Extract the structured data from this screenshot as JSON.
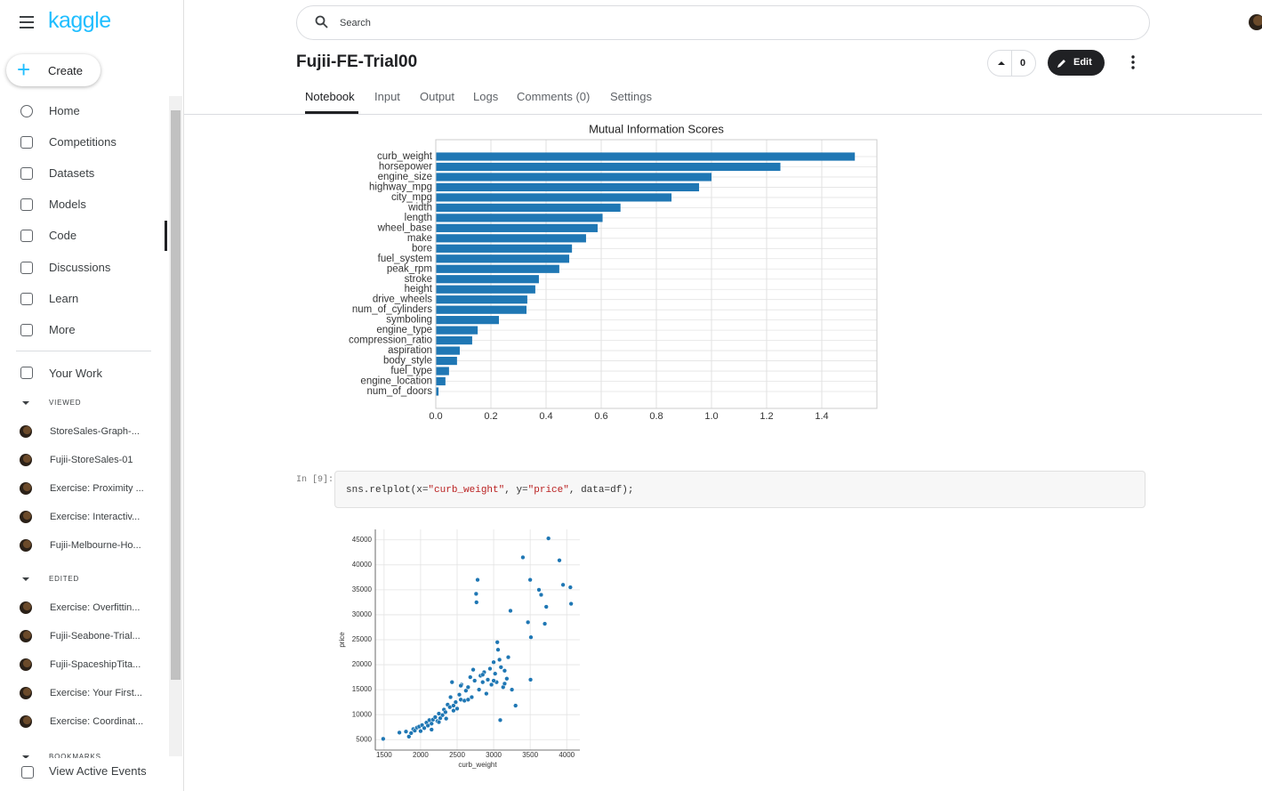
{
  "sidebar": {
    "brand": "kaggle",
    "create": "Create",
    "nav": [
      "Home",
      "Competitions",
      "Datasets",
      "Models",
      "Code",
      "Discussions",
      "Learn",
      "More"
    ],
    "your_work": "Your Work",
    "viewed_label": "VIEWED",
    "viewed": [
      "StoreSales-Graph-...",
      "Fujii-StoreSales-01",
      "Exercise: Proximity ...",
      "Exercise: Interactiv...",
      "Fujii-Melbourne-Ho..."
    ],
    "edited_label": "EDITED",
    "edited": [
      "Exercise: Overfittin...",
      "Fujii-Seabone-Trial...",
      "Fujii-SpaceshipTita...",
      "Exercise: Your First...",
      "Exercise: Coordinat..."
    ],
    "bookmarks_label": "BOOKMARKS",
    "footer": "View Active Events"
  },
  "header": {
    "search": "Search",
    "title": "Fujii-FE-Trial00",
    "votes": 0,
    "edit": "Edit"
  },
  "tabs": [
    "Notebook",
    "Input",
    "Output",
    "Logs",
    "Comments (0)",
    "Settings"
  ],
  "cell": {
    "prompt": "In [9]:",
    "code": [
      "sns.relplot(x=",
      "\"curb_weight\"",
      ", y=",
      "\"price\"",
      ", data=df);"
    ]
  },
  "chart_data": [
    {
      "type": "bar",
      "orientation": "horizontal",
      "title": "Mutual Information Scores",
      "categories": [
        "curb_weight",
        "horsepower",
        "engine_size",
        "highway_mpg",
        "city_mpg",
        "width",
        "length",
        "wheel_base",
        "make",
        "bore",
        "fuel_system",
        "peak_rpm",
        "stroke",
        "height",
        "drive_wheels",
        "num_of_cylinders",
        "symboling",
        "engine_type",
        "compression_ratio",
        "aspiration",
        "body_style",
        "fuel_type",
        "engine_location",
        "num_of_doors"
      ],
      "values": [
        1.52,
        1.25,
        1.0,
        0.955,
        0.855,
        0.67,
        0.605,
        0.587,
        0.545,
        0.494,
        0.484,
        0.448,
        0.374,
        0.361,
        0.332,
        0.329,
        0.229,
        0.152,
        0.132,
        0.087,
        0.077,
        0.048,
        0.035,
        0.01
      ],
      "color": "#1f77b4",
      "xlim": [
        0,
        1.6
      ],
      "xticks": [
        {
          "value": 0,
          "label": "0.0"
        },
        0.2,
        0.4,
        0.6,
        0.8,
        {
          "value": 1,
          "label": "1.0"
        },
        1.2,
        1.4
      ],
      "grid": true
    },
    {
      "type": "scatter",
      "x_label": "curb_weight",
      "y_label": "price",
      "x": [
        1488,
        1710,
        1800,
        1840,
        1870,
        1900,
        1920,
        1950,
        1980,
        2000,
        2020,
        2050,
        2080,
        2100,
        2120,
        2150,
        2170,
        2200,
        2230,
        2250,
        2270,
        2300,
        2320,
        2340,
        2370,
        2400,
        2410,
        2430,
        2450,
        2480,
        2500,
        2530,
        2550,
        2560,
        2600,
        2620,
        2650,
        2680,
        2700,
        2720,
        2740,
        2760,
        2765,
        2780,
        2800,
        2820,
        2850,
        2870,
        2900,
        2920,
        2950,
        2970,
        3000,
        3020,
        3040,
        3050,
        3060,
        3080,
        3090,
        3100,
        3130,
        3150,
        3180,
        3200,
        3230,
        3250,
        3300,
        3400,
        3470,
        3500,
        3510,
        3505,
        3620,
        3650,
        3700,
        3720,
        3750,
        3900,
        3950,
        4050,
        4060,
        2150,
        2250,
        2350,
        2450,
        2550,
        2650,
        2850,
        3000,
        3150
      ],
      "values": [
        5150,
        6400,
        6600,
        5600,
        6300,
        7100,
        6800,
        7400,
        7600,
        6700,
        7900,
        7300,
        8400,
        7800,
        8900,
        8200,
        9000,
        9500,
        8700,
        10200,
        9300,
        9900,
        11000,
        10500,
        12000,
        11500,
        13500,
        16500,
        10800,
        12500,
        11200,
        14000,
        13000,
        16000,
        12800,
        14800,
        15500,
        17500,
        13500,
        19000,
        16800,
        34200,
        32500,
        37000,
        15000,
        17800,
        16500,
        18500,
        14200,
        17000,
        19200,
        16000,
        20500,
        18200,
        16500,
        24500,
        23000,
        21000,
        8900,
        19500,
        15500,
        18800,
        17200,
        21500,
        30800,
        15000,
        11800,
        41500,
        28500,
        37000,
        25500,
        17000,
        35000,
        34000,
        28200,
        31600,
        45300,
        40900,
        36000,
        35500,
        32200,
        7000,
        8500,
        9200,
        11800,
        15800,
        13000,
        18000,
        16800,
        16200
      ],
      "color": "#1f77b4",
      "xlim": [
        1380,
        4180
      ],
      "ylim": [
        2900,
        47100
      ],
      "xticks": [
        1500,
        2000,
        2500,
        3000,
        3500,
        4000
      ],
      "yticks": [
        5000,
        10000,
        15000,
        20000,
        25000,
        30000,
        35000,
        40000,
        45000
      ],
      "grid": true
    }
  ]
}
